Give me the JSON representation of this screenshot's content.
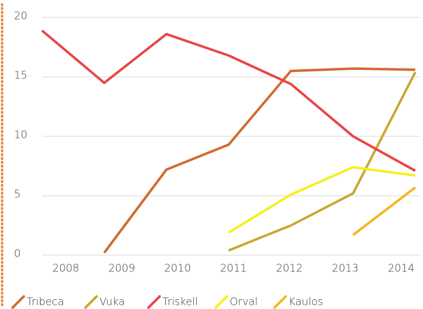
{
  "chart_data": {
    "type": "line",
    "categories": [
      "2008",
      "2009",
      "2010",
      "2011",
      "2012",
      "2013",
      "2014"
    ],
    "series": [
      {
        "name": "Tribeca",
        "color": "#d2692e",
        "values": [
          null,
          0.2,
          7.2,
          9.3,
          15.5,
          15.7,
          15.6
        ]
      },
      {
        "name": "Vuka",
        "color": "#c8a832",
        "values": [
          null,
          null,
          null,
          0.4,
          2.5,
          5.2,
          15.4
        ]
      },
      {
        "name": "Triskell",
        "color": "#e84545",
        "values": [
          18.9,
          14.5,
          18.6,
          16.8,
          14.4,
          10.0,
          7.1
        ]
      },
      {
        "name": "Orval",
        "color": "#f5f01e",
        "values": [
          null,
          null,
          null,
          1.9,
          5.1,
          7.4,
          6.7
        ]
      },
      {
        "name": "Kaulos",
        "color": "#f5b520",
        "values": [
          null,
          null,
          null,
          null,
          null,
          1.7,
          5.7
        ]
      }
    ],
    "ylim": [
      0,
      20
    ],
    "yticks": [
      0,
      5,
      10,
      15,
      20
    ],
    "grid": true,
    "legend": "bottom"
  }
}
